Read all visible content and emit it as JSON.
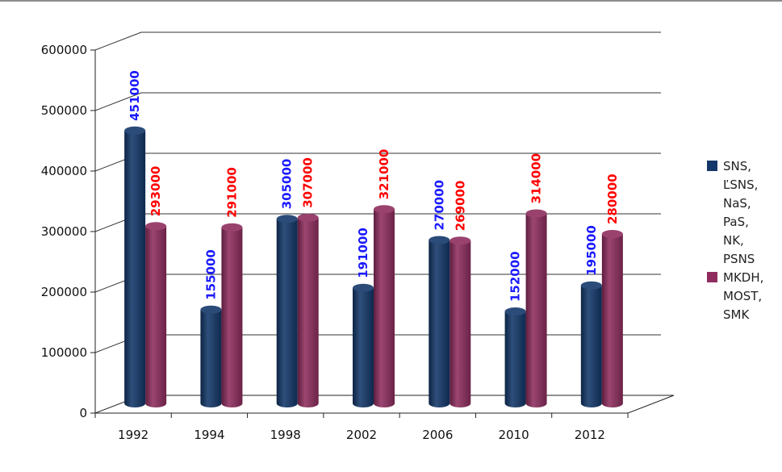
{
  "chart_data": {
    "type": "bar",
    "style": "3d-cylinder",
    "categories": [
      "1992",
      "1994",
      "1998",
      "2002",
      "2006",
      "2010",
      "2012"
    ],
    "series": [
      {
        "name": "SNS,\nĽSNS,\nNaS,\nPaS,\nNK,\nPSNS",
        "color": "#133769",
        "label_color": "#1a1aff",
        "values": [
          451000,
          155000,
          305000,
          191000,
          270000,
          152000,
          195000
        ],
        "labels": [
          "451000",
          "155000",
          "305000",
          "191000",
          "270000",
          "152000",
          "195000"
        ]
      },
      {
        "name": "MKDH,\nMOST,\nSMK",
        "color": "#8f2d5e",
        "label_color": "#ff0000",
        "values": [
          293000,
          291000,
          307000,
          321000,
          269000,
          314000,
          280000
        ],
        "labels": [
          "293000",
          "291000",
          "307000",
          "321000",
          "269000",
          "314000",
          "280000"
        ]
      }
    ],
    "ylim": [
      0,
      600000
    ],
    "yticks": [
      "0",
      "100000",
      "200000",
      "300000",
      "400000",
      "500000",
      "600000"
    ],
    "grid": true,
    "legend": "right",
    "title": "",
    "xlabel": "",
    "ylabel": ""
  }
}
